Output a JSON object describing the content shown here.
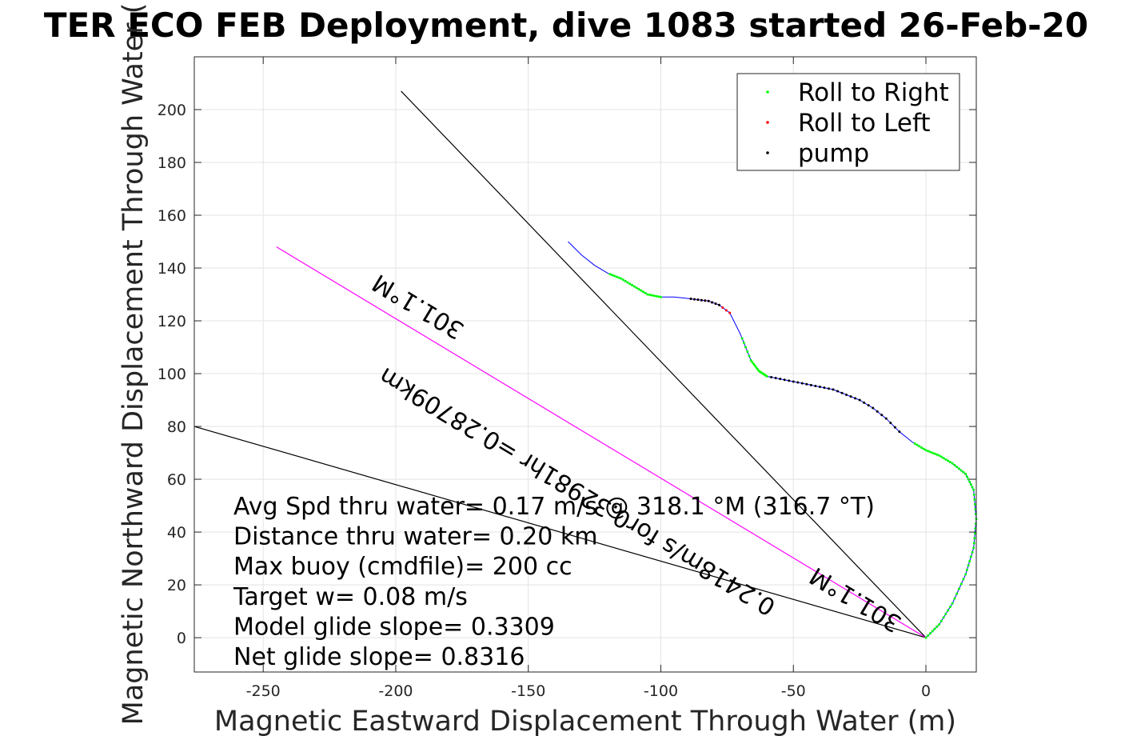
{
  "chart_data": {
    "type": "line",
    "title": "TER ECO FEB Deployment, dive 1083 started 26-Feb-20",
    "xlabel": "Magnetic Eastward Displacement Through Water (m)",
    "ylabel": "Magnetic Northward Displacement Through Water (",
    "xlim": [
      -276,
      19
    ],
    "ylim": [
      -13,
      220
    ],
    "xticks": [
      -250,
      -200,
      -150,
      -100,
      -50,
      0
    ],
    "xtick_labels": [
      "-250",
      "-200",
      "-150",
      "-100",
      "-50",
      "0"
    ],
    "yticks": [
      0,
      20,
      40,
      60,
      80,
      100,
      120,
      140,
      160,
      180,
      200
    ],
    "ytick_labels": [
      "0",
      "20",
      "40",
      "60",
      "80",
      "100",
      "120",
      "140",
      "160",
      "180",
      "200"
    ],
    "grid": true,
    "legend": {
      "location": "top-right",
      "entries": [
        {
          "label": "Roll to Right",
          "color": "#00ff00"
        },
        {
          "label": "Roll to Left",
          "color": "#ff0000"
        },
        {
          "label": "pump",
          "color": "#000000"
        }
      ]
    },
    "track": {
      "name": "",
      "color": "#0000ff",
      "x": [
        0,
        5,
        10,
        15,
        18,
        19,
        18,
        15,
        10,
        5,
        0,
        -5,
        -10,
        -15,
        -20,
        -25,
        -30,
        -35,
        -40,
        -45,
        -50,
        -55,
        -60,
        -63,
        -66,
        -70,
        -74,
        -78,
        -82,
        -86,
        -90,
        -95,
        -100,
        -105,
        -110,
        -115,
        -120,
        -125,
        -130,
        -135
      ],
      "y": [
        0,
        5,
        13,
        24,
        34,
        45,
        56,
        62,
        66,
        69,
        71,
        74,
        78,
        83,
        87,
        90,
        92,
        94,
        95,
        96,
        97,
        98,
        99,
        101,
        105,
        115,
        123,
        126,
        127.5,
        128,
        128.5,
        129,
        129,
        130,
        133,
        136,
        138,
        141,
        145,
        150
      ]
    },
    "roll_right_ranges": [
      [
        0,
        11
      ],
      [
        22,
        25
      ],
      [
        32,
        36
      ]
    ],
    "roll_left_ranges": [
      [
        26,
        30
      ]
    ],
    "pump_ranges": [
      [
        12,
        22
      ],
      [
        27,
        30
      ]
    ],
    "reference_lines": [
      {
        "name": "heading-line-upper",
        "color": "#000000",
        "x": [
          0,
          -198
        ],
        "y": [
          0,
          207
        ]
      },
      {
        "name": "heading-line-lower",
        "color": "#000000",
        "x": [
          0,
          -276
        ],
        "y": [
          0,
          80
        ]
      },
      {
        "name": "direction-line",
        "color": "#ff00ff",
        "x": [
          0,
          -245
        ],
        "y": [
          0,
          148
        ]
      }
    ],
    "annotations": [
      {
        "text": "301.1°M",
        "x": -190,
        "y": 128,
        "rotate": 211
      },
      {
        "text": "0.2418m/s for0.32981hr =0.28709km",
        "x": -130,
        "y": 58,
        "rotate": 211
      },
      {
        "text": "301.1°M",
        "x": -25,
        "y": 17,
        "rotate": 211
      }
    ],
    "stats": [
      "Avg Spd thru water=  0.17 m/s @ 318.1 °M (316.7 °T)",
      "Distance thru water=  0.20 km",
      "Max buoy (cmdfile)= 200 cc",
      "Target w= 0.08 m/s",
      "Model glide slope= 0.3309",
      "Net glide slope= 0.8316"
    ]
  }
}
